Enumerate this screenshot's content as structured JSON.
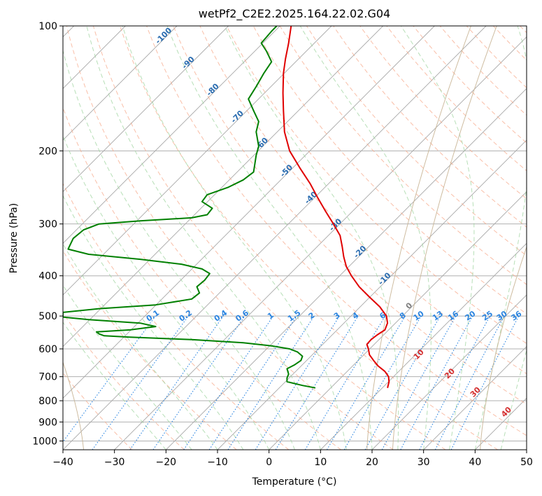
{
  "chart_data": {
    "type": "line",
    "title": "wetPf2_C2E2.2025.164.22.02.G04",
    "xlabel": "Temperature (°C)",
    "ylabel": "Pressure (hPa)",
    "xlim": [
      -40,
      50
    ],
    "ylim": [
      1050,
      100
    ],
    "y_scale": "log",
    "x_ticks": [
      "−40",
      "−30",
      "−20",
      "−10",
      "0",
      "10",
      "20",
      "30",
      "40",
      "50"
    ],
    "y_ticks": [
      "100",
      "200",
      "300",
      "400",
      "500",
      "600",
      "700",
      "800",
      "900",
      "1000"
    ],
    "grid": true,
    "series": [
      {
        "color": "#e00000",
        "points": [
          [
            23.0,
            745
          ],
          [
            23.3,
            720
          ],
          [
            23.2,
            700
          ],
          [
            22.5,
            680
          ],
          [
            21.2,
            660
          ],
          [
            20.3,
            640
          ],
          [
            19.5,
            620
          ],
          [
            19.3,
            600
          ],
          [
            19.0,
            585
          ],
          [
            19.8,
            570
          ],
          [
            21.0,
            555
          ],
          [
            22.5,
            540
          ],
          [
            23.0,
            520
          ],
          [
            22.8,
            500
          ],
          [
            21.5,
            475
          ],
          [
            19.5,
            450
          ],
          [
            17.5,
            425
          ],
          [
            16.0,
            400
          ],
          [
            15.0,
            380
          ],
          [
            14.5,
            360
          ],
          [
            14.2,
            340
          ],
          [
            13.8,
            320
          ],
          [
            12.5,
            300
          ],
          [
            11.0,
            280
          ],
          [
            9.5,
            260
          ],
          [
            8.0,
            240
          ],
          [
            6.0,
            220
          ],
          [
            4.0,
            200
          ],
          [
            3.0,
            180
          ],
          [
            2.8,
            160
          ],
          [
            2.7,
            145
          ],
          [
            2.8,
            130
          ],
          [
            3.2,
            120
          ],
          [
            3.8,
            110
          ],
          [
            4.3,
            100
          ]
        ]
      },
      {
        "color": "#008000",
        "points": [
          [
            9.0,
            745
          ],
          [
            6.5,
            735
          ],
          [
            3.5,
            720
          ],
          [
            3.5,
            705
          ],
          [
            3.8,
            690
          ],
          [
            3.5,
            670
          ],
          [
            5.0,
            655
          ],
          [
            6.2,
            640
          ],
          [
            6.5,
            625
          ],
          [
            5.5,
            610
          ],
          [
            4.0,
            600
          ],
          [
            0.5,
            590
          ],
          [
            -5.0,
            580
          ],
          [
            -15.0,
            570
          ],
          [
            -27.0,
            562
          ],
          [
            -32.0,
            558
          ],
          [
            -33.0,
            552
          ],
          [
            -33.5,
            546
          ],
          [
            -27.0,
            540
          ],
          [
            -22.0,
            530
          ],
          [
            -25.0,
            520
          ],
          [
            -35.0,
            510
          ],
          [
            -40.0,
            503
          ],
          [
            -40.0,
            490
          ],
          [
            -33.0,
            480
          ],
          [
            -22.0,
            470
          ],
          [
            -15.0,
            455
          ],
          [
            -13.5,
            440
          ],
          [
            -14.0,
            425
          ],
          [
            -12.5,
            410
          ],
          [
            -11.5,
            395
          ],
          [
            -13.0,
            385
          ],
          [
            -17.0,
            375
          ],
          [
            -25.0,
            365
          ],
          [
            -35.0,
            355
          ],
          [
            -39.0,
            345
          ],
          [
            -38.0,
            325
          ],
          [
            -36.0,
            310
          ],
          [
            -33.0,
            300
          ],
          [
            -25.0,
            295
          ],
          [
            -15.0,
            290
          ],
          [
            -12.0,
            285
          ],
          [
            -11.0,
            275
          ],
          [
            -13.0,
            265
          ],
          [
            -12.0,
            255
          ],
          [
            -8.0,
            245
          ],
          [
            -5.0,
            235
          ],
          [
            -3.0,
            225
          ],
          [
            -2.5,
            205
          ],
          [
            -2.0,
            195
          ],
          [
            -2.5,
            180
          ],
          [
            -2.0,
            170
          ],
          [
            -3.0,
            160
          ],
          [
            -4.0,
            150
          ],
          [
            -2.5,
            140
          ],
          [
            -1.0,
            130
          ],
          [
            0.5,
            122
          ],
          [
            -0.5,
            115
          ],
          [
            -1.5,
            110
          ],
          [
            0.5,
            103
          ],
          [
            1.5,
            100
          ]
        ]
      }
    ],
    "isotherm_labels": [
      "-100",
      "-90",
      "-80",
      "-70",
      "-60",
      "-50",
      "-40",
      "-30",
      "-20",
      "-10",
      "0"
    ],
    "mixing_ratio_labels": [
      "0.1",
      "0.2",
      "0.4",
      "0.6",
      "1",
      "1.5",
      "2",
      "3",
      "4",
      "6",
      "8",
      "10",
      "13",
      "16",
      "20",
      "25",
      "30",
      "36"
    ],
    "wet_bulb_labels": [
      "10",
      "20",
      "30",
      "40"
    ],
    "colors": {
      "temperature": "#e00000",
      "dewpoint": "#008000",
      "dry_adiabat": "#f7a98b",
      "moist_adiabat": "#9fd49f",
      "mixing_ratio": "#2a84e0"
    }
  }
}
